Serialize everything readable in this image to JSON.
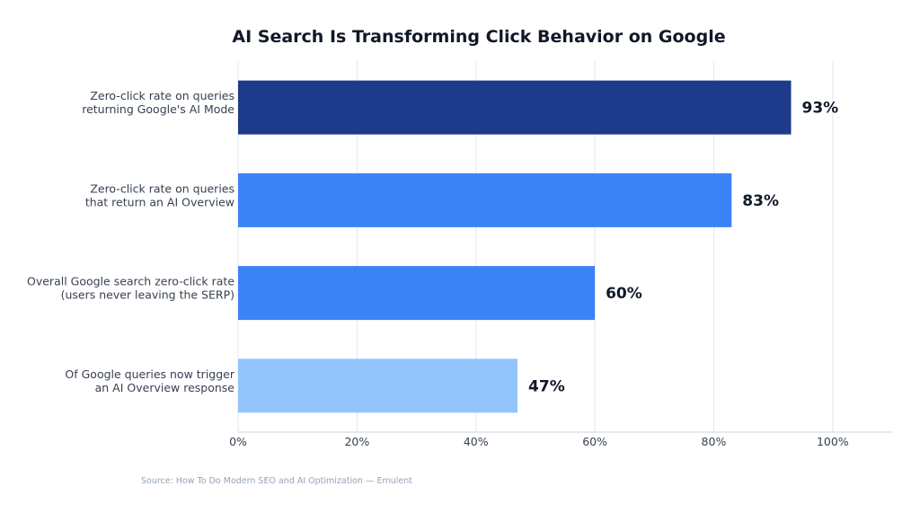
{
  "chart_data": {
    "type": "bar",
    "orientation": "horizontal",
    "title": "AI Search Is Transforming Click Behavior on Google",
    "categories": [
      [
        "Zero-click rate on queries",
        "returning Google's AI Mode"
      ],
      [
        "Zero-click rate on queries",
        "that return an AI Overview"
      ],
      [
        "Overall Google search zero-click rate",
        "(users never leaving the SERP)"
      ],
      [
        "Of Google queries now trigger",
        "an AI Overview response"
      ]
    ],
    "values": [
      93,
      83,
      60,
      47
    ],
    "value_labels": [
      "93%",
      "83%",
      "60%",
      "47%"
    ],
    "colors": [
      "#1e3a8a",
      "#3b82f6",
      "#3b82f6",
      "#93c5fd"
    ],
    "xlim": [
      0,
      110
    ],
    "xticks": [
      0,
      20,
      40,
      60,
      80,
      100
    ],
    "xtick_labels": [
      "0%",
      "20%",
      "40%",
      "60%",
      "80%",
      "100%"
    ],
    "xlabel": "",
    "ylabel": "",
    "grid": "vertical",
    "legend": "none"
  },
  "source": "Source: How To Do Modern SEO and AI Optimization — Emulent"
}
